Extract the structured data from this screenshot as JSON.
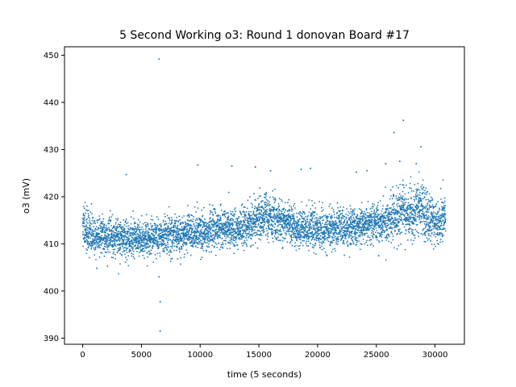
{
  "chart_data": {
    "type": "scatter",
    "title": "5 Second Working o3: Round 1 donovan Board #17",
    "xlabel": "time (5 seconds)",
    "ylabel": "o3 (mV)",
    "xlim": [
      -1550,
      32500
    ],
    "ylim": [
      388.7,
      451.8
    ],
    "xticks": [
      0,
      5000,
      10000,
      15000,
      20000,
      25000,
      30000
    ],
    "yticks": [
      390,
      400,
      410,
      420,
      430,
      440,
      450
    ],
    "grid": false,
    "color": "#1f77b4",
    "n_points": 30900,
    "band": [
      {
        "x": 0,
        "center": 413.5,
        "spread": 2.3
      },
      {
        "x": 1000,
        "center": 411.5,
        "spread": 2.1
      },
      {
        "x": 3000,
        "center": 411.3,
        "spread": 2.0
      },
      {
        "x": 5000,
        "center": 411.0,
        "spread": 2.0
      },
      {
        "x": 6500,
        "center": 411.3,
        "spread": 2.0
      },
      {
        "x": 8000,
        "center": 412.0,
        "spread": 2.0
      },
      {
        "x": 10000,
        "center": 412.6,
        "spread": 2.0
      },
      {
        "x": 12000,
        "center": 413.0,
        "spread": 2.0
      },
      {
        "x": 14000,
        "center": 413.5,
        "spread": 2.1
      },
      {
        "x": 15000,
        "center": 415.5,
        "spread": 2.4
      },
      {
        "x": 16500,
        "center": 415.0,
        "spread": 2.3
      },
      {
        "x": 18000,
        "center": 413.6,
        "spread": 2.1
      },
      {
        "x": 20000,
        "center": 413.0,
        "spread": 2.1
      },
      {
        "x": 22000,
        "center": 413.2,
        "spread": 2.0
      },
      {
        "x": 24000,
        "center": 414.0,
        "spread": 2.0
      },
      {
        "x": 26000,
        "center": 415.0,
        "spread": 2.2
      },
      {
        "x": 27300,
        "center": 416.8,
        "spread": 2.6
      },
      {
        "x": 28000,
        "center": 416.0,
        "spread": 2.6
      },
      {
        "x": 28600,
        "center": 418.0,
        "spread": 2.8
      },
      {
        "x": 29300,
        "center": 416.0,
        "spread": 2.5
      },
      {
        "x": 30000,
        "center": 414.5,
        "spread": 2.3
      },
      {
        "x": 30900,
        "center": 415.0,
        "spread": 2.3
      }
    ],
    "outliers": [
      {
        "x": 6500,
        "y": 449.2
      },
      {
        "x": 6500,
        "y": 403.0
      },
      {
        "x": 6600,
        "y": 397.7
      },
      {
        "x": 6600,
        "y": 391.5
      },
      {
        "x": 3700,
        "y": 424.7
      },
      {
        "x": 9800,
        "y": 426.7
      },
      {
        "x": 12700,
        "y": 426.5
      },
      {
        "x": 14700,
        "y": 426.3
      },
      {
        "x": 16000,
        "y": 425.5
      },
      {
        "x": 18600,
        "y": 425.8
      },
      {
        "x": 19400,
        "y": 426.0
      },
      {
        "x": 23300,
        "y": 425.2
      },
      {
        "x": 24200,
        "y": 425.5
      },
      {
        "x": 25800,
        "y": 427.0
      },
      {
        "x": 26500,
        "y": 433.6
      },
      {
        "x": 27300,
        "y": 436.2
      },
      {
        "x": 28800,
        "y": 430.6
      },
      {
        "x": 27000,
        "y": 427.5
      },
      {
        "x": 28400,
        "y": 427.0
      },
      {
        "x": 1200,
        "y": 404.8
      },
      {
        "x": 25200,
        "y": 407.5
      }
    ]
  }
}
